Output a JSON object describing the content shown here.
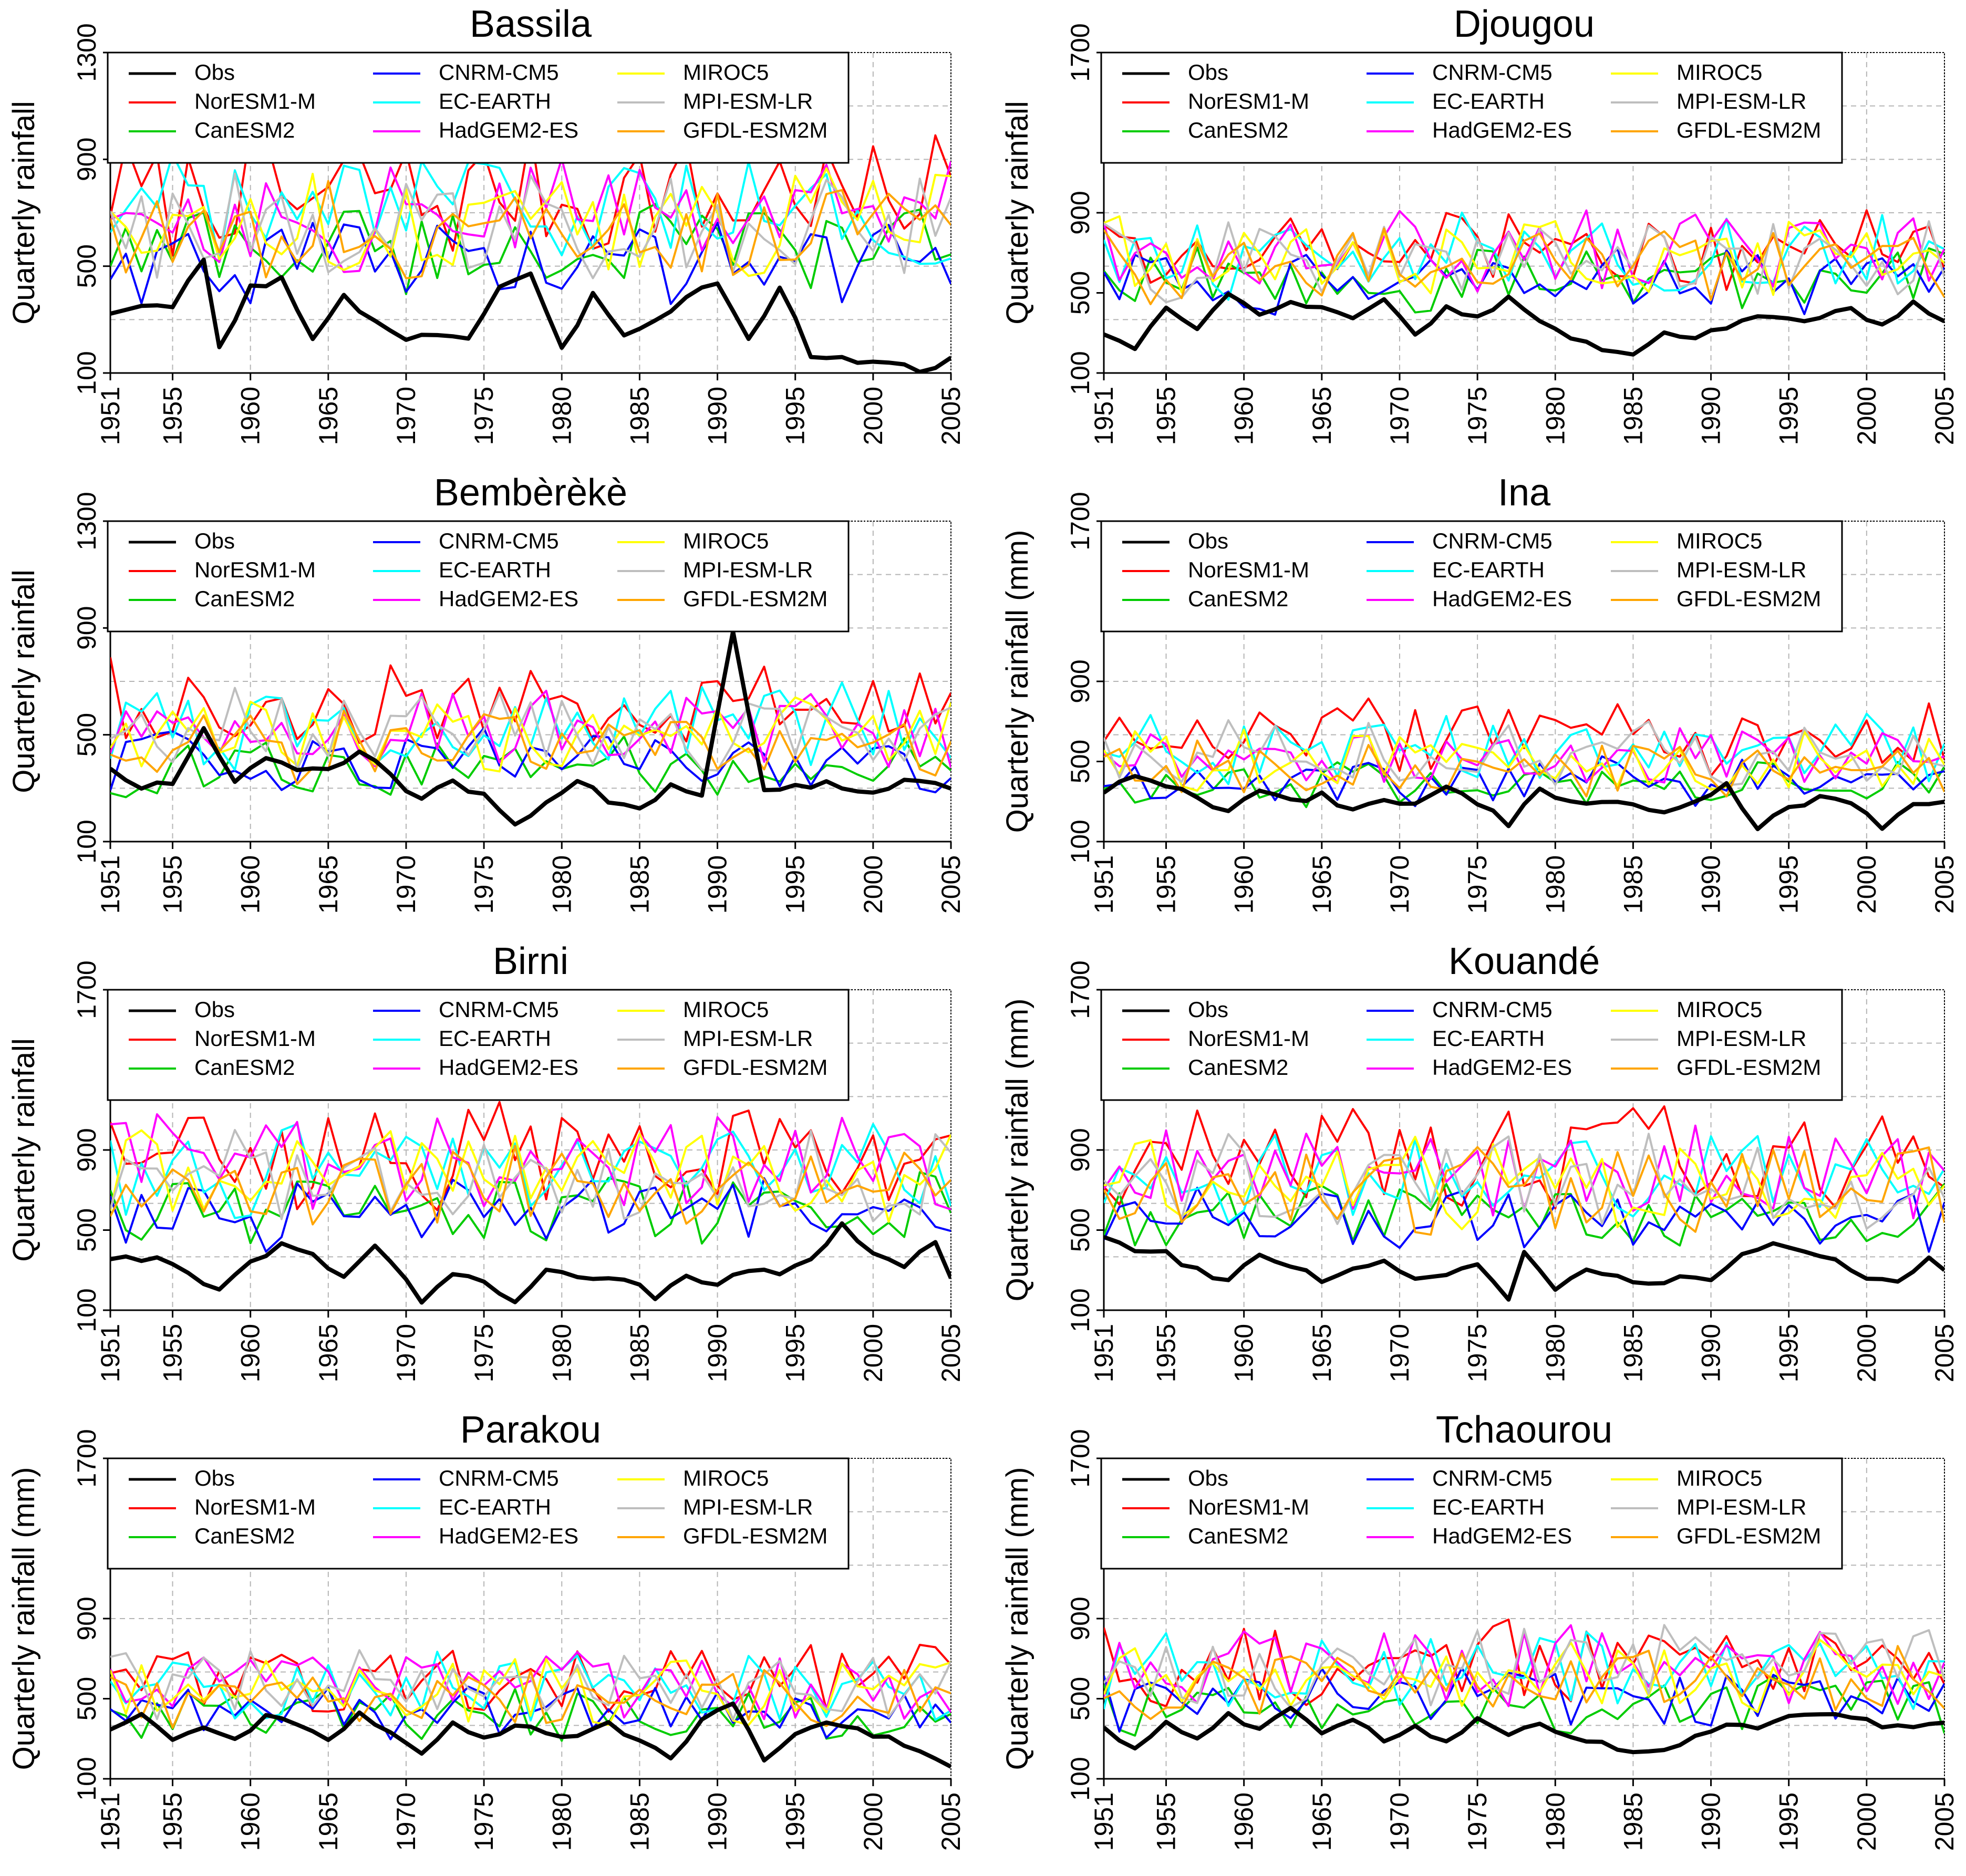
{
  "colors": {
    "Obs": "#000000",
    "NorESM1-M": "#ff0000",
    "CanESM2": "#00cc00",
    "CNRM-CM5": "#0000ff",
    "EC-EARTH": "#00ffff",
    "HadGEM2-ES": "#ff00ff",
    "MIROC5": "#ffff00",
    "MPI-ESM-LR": "#bebebe",
    "GFDL-ESM2M": "#ffa500"
  },
  "legend": {
    "col1": [
      "Obs",
      "NorESM1-M",
      "CanESM2"
    ],
    "col2": [
      "CNRM-CM5",
      "EC-EARTH",
      "HadGEM2-ES"
    ],
    "col3": [
      "MIROC5",
      "MPI-ESM-LR",
      "GFDL-ESM2M"
    ]
  },
  "x_ticks": [
    "1951",
    "1955",
    "1960",
    "1965",
    "1970",
    "1975",
    "1980",
    "1985",
    "1990",
    "1995",
    "2000",
    "2005"
  ],
  "chart_data": [
    {
      "type": "line",
      "title": "Bassila",
      "xlabel": "",
      "ylabel": "Quarterly rainfall",
      "xlim": [
        1951,
        2005
      ],
      "ylim": [
        100,
        1300
      ],
      "yticks": [
        "100",
        "500",
        "900",
        "1300"
      ],
      "obs_keypoints": [
        [
          1951,
          330
        ],
        [
          1955,
          350
        ],
        [
          1957,
          520
        ],
        [
          1958,
          200
        ],
        [
          1960,
          420
        ],
        [
          1962,
          450
        ],
        [
          1964,
          220
        ],
        [
          1966,
          380
        ],
        [
          1968,
          300
        ],
        [
          1970,
          230
        ],
        [
          1972,
          250
        ],
        [
          1974,
          230
        ],
        [
          1976,
          420
        ],
        [
          1978,
          460
        ],
        [
          1980,
          180
        ],
        [
          1982,
          400
        ],
        [
          1984,
          250
        ],
        [
          1986,
          300
        ],
        [
          1988,
          380
        ],
        [
          1990,
          450
        ],
        [
          1992,
          220
        ],
        [
          1994,
          420
        ],
        [
          1996,
          170
        ],
        [
          2000,
          140
        ],
        [
          2004,
          110
        ],
        [
          2005,
          160
        ]
      ],
      "series_means": {
        "NorESM1-M": 770,
        "CanESM2": 570,
        "CNRM-CM5": 520,
        "EC-EARTH": 700,
        "HadGEM2-ES": 700,
        "MIROC5": 680,
        "MPI-ESM-LR": 660,
        "GFDL-ESM2M": 640
      }
    },
    {
      "type": "line",
      "title": "Djougou",
      "xlabel": "",
      "ylabel": "Quarterly rainfall",
      "xlim": [
        1951,
        2005
      ],
      "ylim": [
        100,
        1700
      ],
      "yticks": [
        "100",
        "500",
        "900",
        "1700"
      ],
      "obs_keypoints": [
        [
          1951,
          300
        ],
        [
          1953,
          230
        ],
        [
          1955,
          420
        ],
        [
          1957,
          320
        ],
        [
          1959,
          480
        ],
        [
          1961,
          400
        ],
        [
          1963,
          460
        ],
        [
          1965,
          420
        ],
        [
          1967,
          380
        ],
        [
          1969,
          480
        ],
        [
          1971,
          300
        ],
        [
          1973,
          420
        ],
        [
          1975,
          380
        ],
        [
          1977,
          480
        ],
        [
          1979,
          350
        ],
        [
          1981,
          280
        ],
        [
          1983,
          220
        ],
        [
          1985,
          200
        ],
        [
          1987,
          300
        ],
        [
          1989,
          280
        ],
        [
          1991,
          330
        ],
        [
          1993,
          370
        ],
        [
          1995,
          360
        ],
        [
          1997,
          380
        ],
        [
          1999,
          410
        ],
        [
          2001,
          330
        ],
        [
          2003,
          450
        ],
        [
          2005,
          360
        ]
      ],
      "series_means": {
        "NorESM1-M": 760,
        "CanESM2": 560,
        "CNRM-CM5": 560,
        "EC-EARTH": 690,
        "HadGEM2-ES": 720,
        "MIROC5": 680,
        "MPI-ESM-LR": 660,
        "GFDL-ESM2M": 640
      }
    },
    {
      "type": "line",
      "title": "Bembèrèkè",
      "xlabel": "",
      "ylabel": "Quarterly rainfall",
      "xlim": [
        1951,
        2005
      ],
      "ylim": [
        100,
        1300
      ],
      "yticks": [
        "100",
        "500",
        "900",
        "1300"
      ],
      "obs_keypoints": [
        [
          1951,
          380
        ],
        [
          1953,
          300
        ],
        [
          1955,
          330
        ],
        [
          1957,
          530
        ],
        [
          1959,
          310
        ],
        [
          1961,
          420
        ],
        [
          1963,
          380
        ],
        [
          1965,
          360
        ],
        [
          1967,
          440
        ],
        [
          1969,
          340
        ],
        [
          1971,
          250
        ],
        [
          1973,
          330
        ],
        [
          1975,
          270
        ],
        [
          1977,
          170
        ],
        [
          1979,
          240
        ],
        [
          1981,
          330
        ],
        [
          1983,
          250
        ],
        [
          1985,
          230
        ],
        [
          1987,
          300
        ],
        [
          1989,
          260
        ],
        [
          1991,
          900
        ],
        [
          1993,
          290
        ],
        [
          1995,
          300
        ],
        [
          1997,
          330
        ],
        [
          1999,
          280
        ],
        [
          2001,
          310
        ],
        [
          2003,
          330
        ],
        [
          2005,
          300
        ]
      ],
      "series_means": {
        "NorESM1-M": 600,
        "CanESM2": 380,
        "CNRM-CM5": 400,
        "EC-EARTH": 540,
        "HadGEM2-ES": 520,
        "MIROC5": 500,
        "MPI-ESM-LR": 520,
        "GFDL-ESM2M": 460
      }
    },
    {
      "type": "line",
      "title": "Ina",
      "xlabel": "",
      "ylabel": "Quarterly rainfall (mm)",
      "xlim": [
        1951,
        2005
      ],
      "ylim": [
        100,
        1700
      ],
      "yticks": [
        "100",
        "500",
        "900",
        "1700"
      ],
      "obs_keypoints": [
        [
          1951,
          350
        ],
        [
          1953,
          420
        ],
        [
          1955,
          380
        ],
        [
          1957,
          330
        ],
        [
          1959,
          240
        ],
        [
          1961,
          360
        ],
        [
          1963,
          300
        ],
        [
          1965,
          330
        ],
        [
          1967,
          260
        ],
        [
          1969,
          300
        ],
        [
          1971,
          290
        ],
        [
          1973,
          360
        ],
        [
          1975,
          300
        ],
        [
          1977,
          190
        ],
        [
          1979,
          360
        ],
        [
          1981,
          300
        ],
        [
          1983,
          300
        ],
        [
          1985,
          290
        ],
        [
          1987,
          250
        ],
        [
          1989,
          300
        ],
        [
          1991,
          380
        ],
        [
          1993,
          170
        ],
        [
          1995,
          260
        ],
        [
          1997,
          330
        ],
        [
          1999,
          290
        ],
        [
          2001,
          170
        ],
        [
          2003,
          300
        ],
        [
          2005,
          300
        ]
      ],
      "series_means": {
        "NorESM1-M": 620,
        "CanESM2": 380,
        "CNRM-CM5": 400,
        "EC-EARTH": 560,
        "HadGEM2-ES": 520,
        "MIROC5": 500,
        "MPI-ESM-LR": 540,
        "GFDL-ESM2M": 460
      }
    },
    {
      "type": "line",
      "title": "Birni",
      "xlabel": "",
      "ylabel": "Quarterly rainfall",
      "xlim": [
        1951,
        2005
      ],
      "ylim": [
        100,
        1700
      ],
      "yticks": [
        "100",
        "500",
        "900",
        "1700"
      ],
      "obs_keypoints": [
        [
          1951,
          360
        ],
        [
          1954,
          360
        ],
        [
          1956,
          290
        ],
        [
          1958,
          200
        ],
        [
          1960,
          330
        ],
        [
          1962,
          420
        ],
        [
          1964,
          380
        ],
        [
          1966,
          260
        ],
        [
          1968,
          420
        ],
        [
          1970,
          260
        ],
        [
          1971,
          150
        ],
        [
          1973,
          280
        ],
        [
          1975,
          250
        ],
        [
          1977,
          130
        ],
        [
          1979,
          300
        ],
        [
          1981,
          260
        ],
        [
          1983,
          260
        ],
        [
          1985,
          230
        ],
        [
          1986,
          170
        ],
        [
          1988,
          260
        ],
        [
          1990,
          240
        ],
        [
          1992,
          300
        ],
        [
          1994,
          280
        ],
        [
          1996,
          340
        ],
        [
          1998,
          520
        ],
        [
          2000,
          380
        ],
        [
          2002,
          330
        ],
        [
          2004,
          440
        ],
        [
          2005,
          260
        ]
      ],
      "series_means": {
        "NorESM1-M": 880,
        "CanESM2": 600,
        "CNRM-CM5": 580,
        "EC-EARTH": 800,
        "HadGEM2-ES": 820,
        "MIROC5": 780,
        "MPI-ESM-LR": 760,
        "GFDL-ESM2M": 720
      }
    },
    {
      "type": "line",
      "title": "Kouandé",
      "xlabel": "",
      "ylabel": "Quarterly rainfall (mm)",
      "xlim": [
        1951,
        2005
      ],
      "ylim": [
        100,
        1700
      ],
      "yticks": [
        "100",
        "500",
        "900",
        "1700"
      ],
      "obs_keypoints": [
        [
          1951,
          470
        ],
        [
          1953,
          400
        ],
        [
          1955,
          380
        ],
        [
          1957,
          300
        ],
        [
          1959,
          240
        ],
        [
          1961,
          380
        ],
        [
          1963,
          320
        ],
        [
          1965,
          250
        ],
        [
          1967,
          300
        ],
        [
          1969,
          350
        ],
        [
          1971,
          250
        ],
        [
          1973,
          290
        ],
        [
          1975,
          330
        ],
        [
          1977,
          150
        ],
        [
          1978,
          400
        ],
        [
          1980,
          200
        ],
        [
          1982,
          300
        ],
        [
          1984,
          260
        ],
        [
          1986,
          220
        ],
        [
          1988,
          270
        ],
        [
          1990,
          240
        ],
        [
          1992,
          380
        ],
        [
          1994,
          420
        ],
        [
          1996,
          380
        ],
        [
          1998,
          360
        ],
        [
          2000,
          260
        ],
        [
          2002,
          240
        ],
        [
          2004,
          350
        ],
        [
          2005,
          300
        ]
      ],
      "series_means": {
        "NorESM1-M": 860,
        "CanESM2": 580,
        "CNRM-CM5": 560,
        "EC-EARTH": 760,
        "HadGEM2-ES": 780,
        "MIROC5": 740,
        "MPI-ESM-LR": 740,
        "GFDL-ESM2M": 700
      }
    },
    {
      "type": "line",
      "title": "Parakou",
      "xlabel": "",
      "ylabel": "Quarterly rainfall (mm)",
      "xlim": [
        1951,
        2005
      ],
      "ylim": [
        100,
        1700
      ],
      "yticks": [
        "100",
        "500",
        "900",
        "1700"
      ],
      "obs_keypoints": [
        [
          1951,
          350
        ],
        [
          1953,
          420
        ],
        [
          1955,
          300
        ],
        [
          1957,
          350
        ],
        [
          1959,
          290
        ],
        [
          1961,
          420
        ],
        [
          1963,
          380
        ],
        [
          1965,
          300
        ],
        [
          1967,
          420
        ],
        [
          1969,
          340
        ],
        [
          1971,
          230
        ],
        [
          1973,
          380
        ],
        [
          1975,
          300
        ],
        [
          1977,
          370
        ],
        [
          1979,
          330
        ],
        [
          1981,
          300
        ],
        [
          1983,
          380
        ],
        [
          1985,
          290
        ],
        [
          1987,
          200
        ],
        [
          1989,
          400
        ],
        [
          1991,
          480
        ],
        [
          1993,
          200
        ],
        [
          1995,
          310
        ],
        [
          1997,
          380
        ],
        [
          1999,
          340
        ],
        [
          2001,
          300
        ],
        [
          2003,
          250
        ],
        [
          2005,
          160
        ]
      ],
      "series_means": {
        "NorESM1-M": 600,
        "CanESM2": 430,
        "CNRM-CM5": 440,
        "EC-EARTH": 560,
        "HadGEM2-ES": 580,
        "MIROC5": 540,
        "MPI-ESM-LR": 580,
        "GFDL-ESM2M": 500
      }
    },
    {
      "type": "line",
      "title": "Tchaourou",
      "xlabel": "",
      "ylabel": "Quarterly rainfall (mm)",
      "xlim": [
        1951,
        2005
      ],
      "ylim": [
        100,
        1700
      ],
      "yticks": [
        "100",
        "500",
        "900",
        "1700"
      ],
      "obs_keypoints": [
        [
          1951,
          360
        ],
        [
          1953,
          240
        ],
        [
          1955,
          380
        ],
        [
          1957,
          300
        ],
        [
          1959,
          420
        ],
        [
          1961,
          350
        ],
        [
          1963,
          440
        ],
        [
          1965,
          330
        ],
        [
          1967,
          380
        ],
        [
          1969,
          300
        ],
        [
          1971,
          350
        ],
        [
          1973,
          300
        ],
        [
          1975,
          390
        ],
        [
          1977,
          330
        ],
        [
          1979,
          380
        ],
        [
          1981,
          320
        ],
        [
          1983,
          280
        ],
        [
          1985,
          230
        ],
        [
          1987,
          230
        ],
        [
          1989,
          300
        ],
        [
          1991,
          380
        ],
        [
          1993,
          340
        ],
        [
          1995,
          400
        ],
        [
          1997,
          420
        ],
        [
          1999,
          400
        ],
        [
          2001,
          370
        ],
        [
          2003,
          350
        ],
        [
          2005,
          380
        ]
      ],
      "series_means": {
        "NorESM1-M": 680,
        "CanESM2": 460,
        "CNRM-CM5": 500,
        "EC-EARTH": 640,
        "HadGEM2-ES": 660,
        "MIROC5": 620,
        "MPI-ESM-LR": 660,
        "GFDL-ESM2M": 580
      }
    }
  ]
}
